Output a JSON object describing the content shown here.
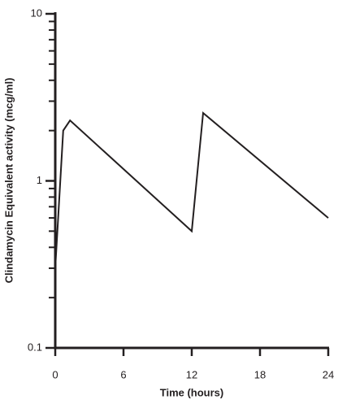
{
  "chart_data": {
    "type": "line",
    "xlabel": "Time (hours)",
    "ylabel": "Clindamycin Equivalent activity (mcg/ml)",
    "x": [
      0,
      0.7,
      1.3,
      12,
      13,
      24
    ],
    "series": [
      {
        "color": "#231f20",
        "values": [
          0.3,
          2.0,
          2.3,
          0.5,
          2.55,
          0.6
        ]
      }
    ],
    "xlim": [
      0,
      24
    ],
    "xticks": [
      0,
      6,
      12,
      18,
      24
    ],
    "ylim": [
      0.1,
      10
    ],
    "yticks": [
      0.1,
      1,
      10
    ],
    "log_y": true,
    "yminorticks": [
      0.2,
      0.3,
      0.4,
      0.5,
      0.6,
      0.7,
      0.8,
      0.9,
      2,
      3,
      4,
      5,
      6,
      7,
      8,
      9
    ]
  }
}
